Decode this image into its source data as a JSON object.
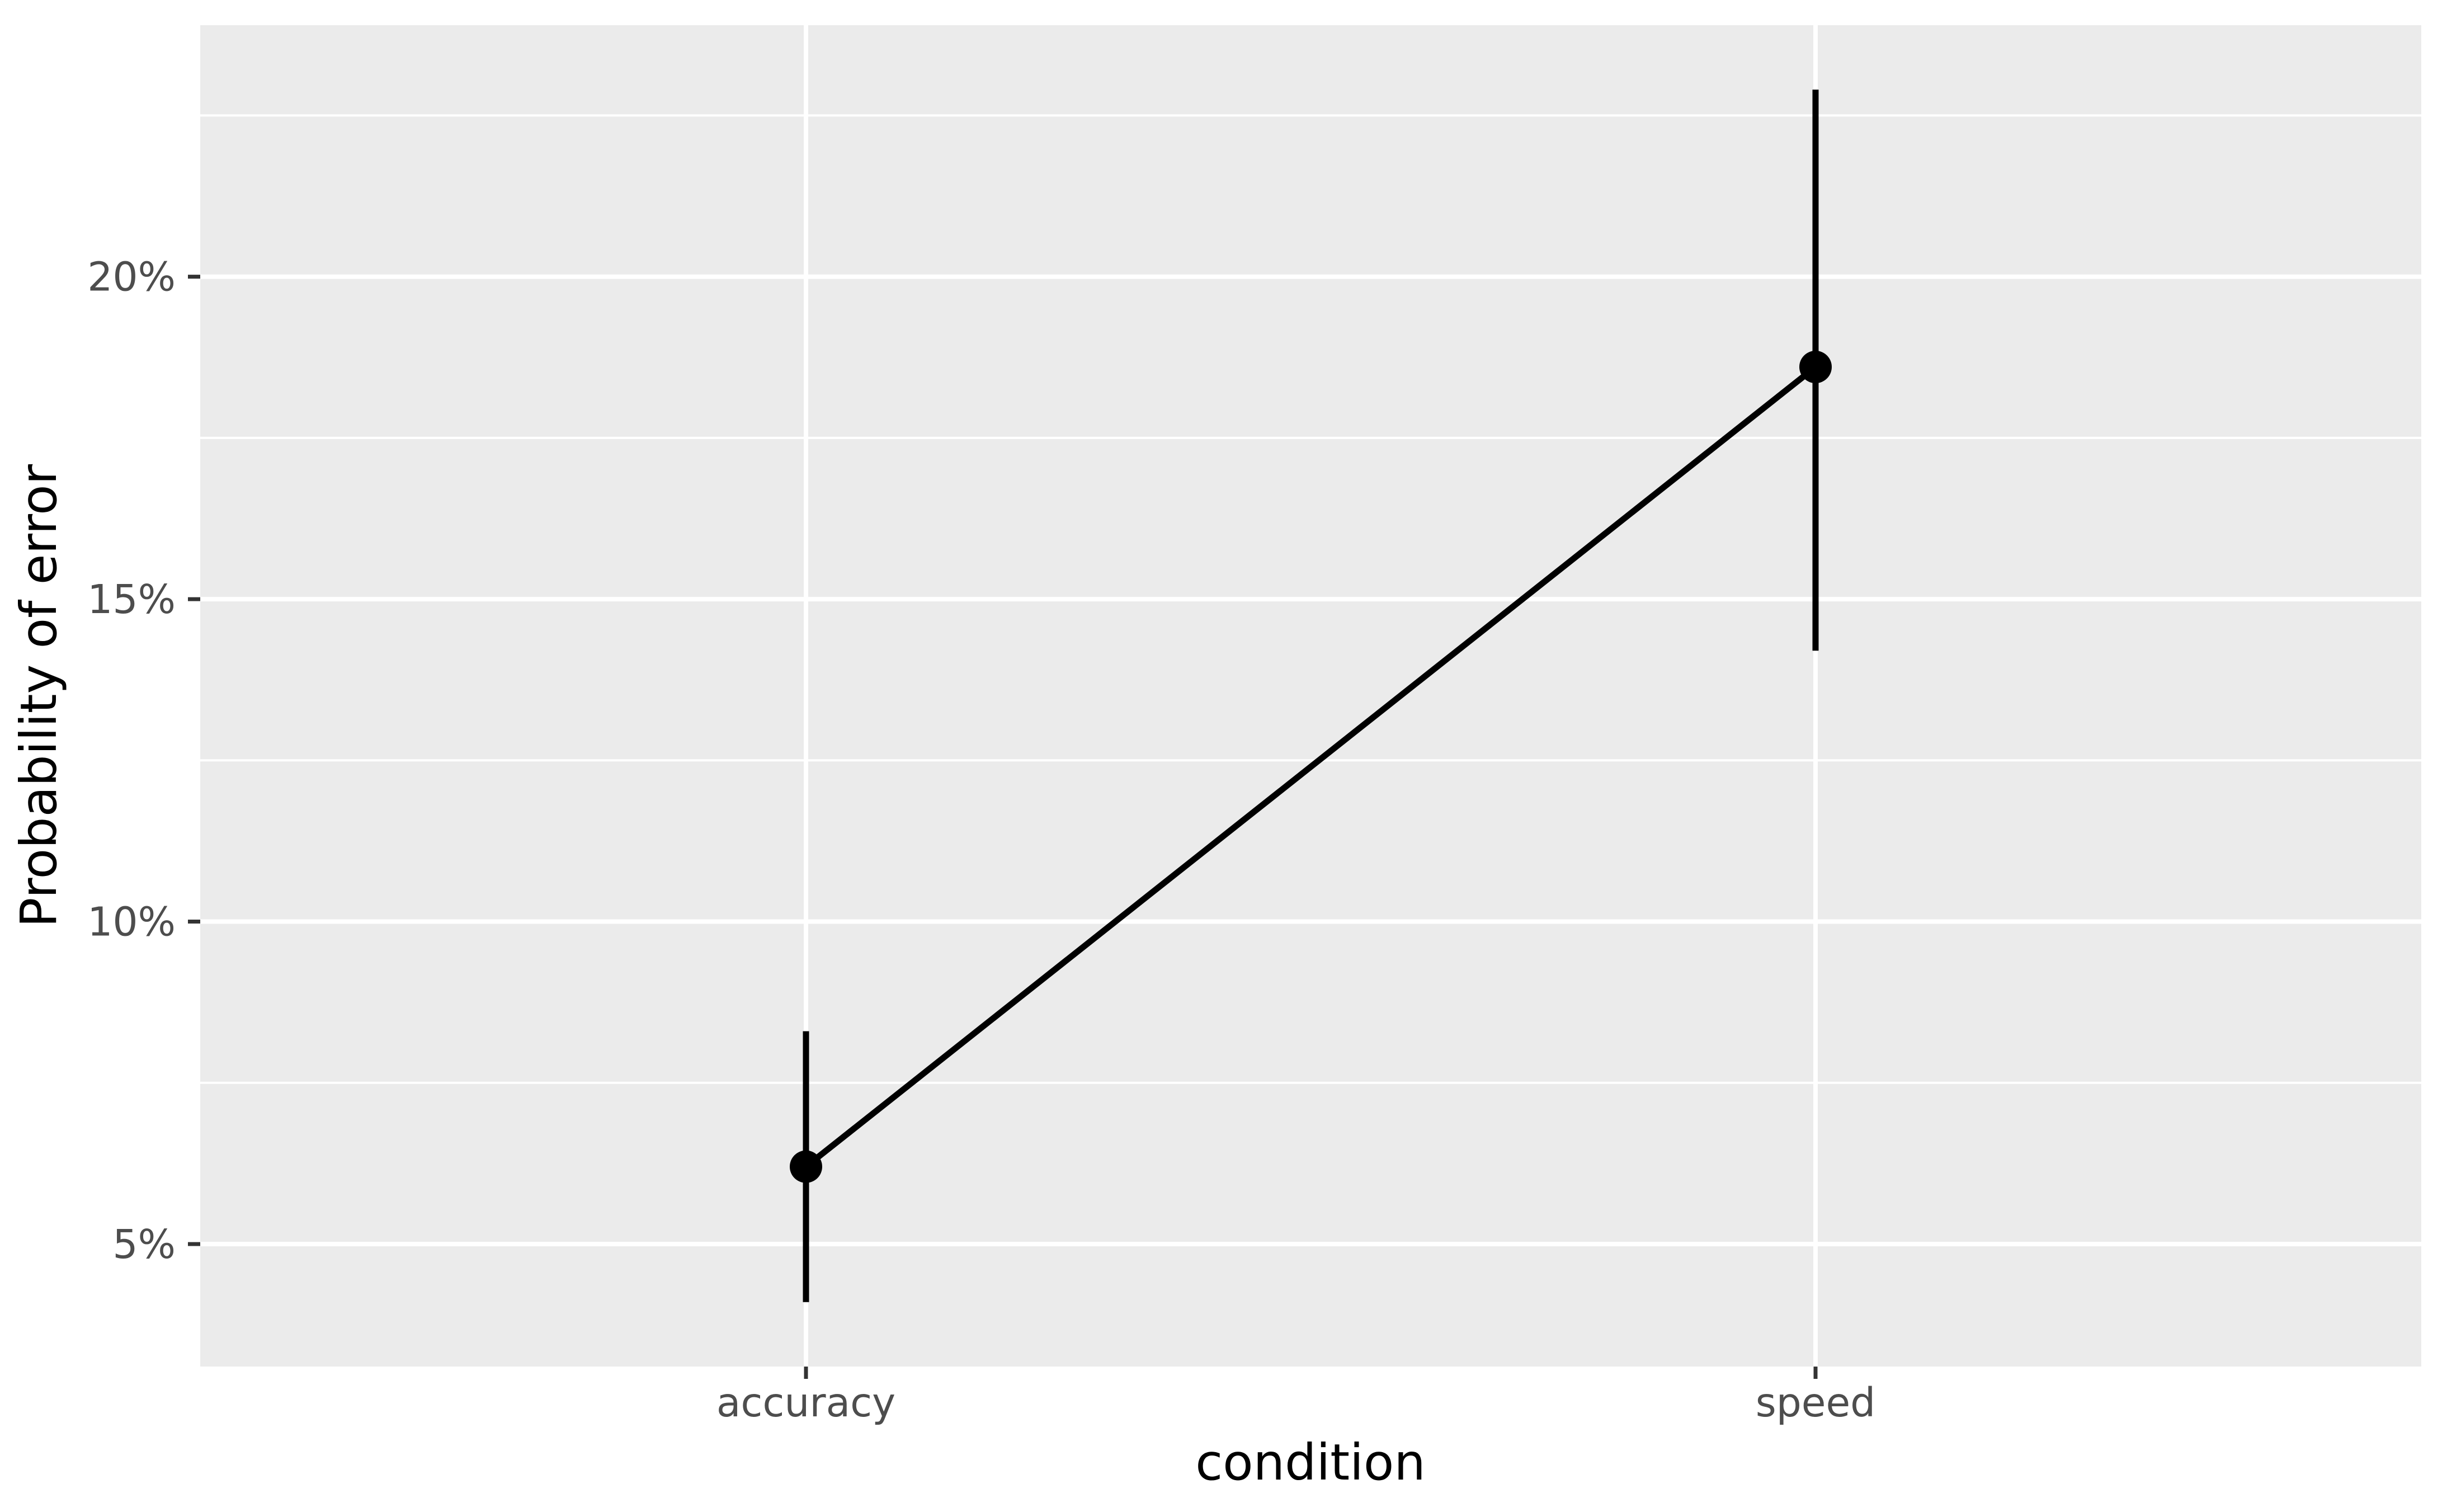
{
  "chart_data": {
    "type": "line+pointrange",
    "title": "",
    "xlabel": "condition",
    "ylabel": "Probability of error",
    "categories": [
      "accuracy",
      "speed"
    ],
    "x_positions": [
      1,
      2
    ],
    "series": [
      {
        "name": "probability of error",
        "points": [
          {
            "x": "accuracy",
            "y": 6.2,
            "ymin": 4.1,
            "ymax": 8.3
          },
          {
            "x": "speed",
            "y": 18.6,
            "ymin": 14.2,
            "ymax": 22.9
          }
        ]
      }
    ],
    "y_ticks": [
      {
        "value": 20,
        "label": "20%"
      },
      {
        "value": 15,
        "label": "15%"
      },
      {
        "value": 10,
        "label": "10%"
      },
      {
        "value": 5,
        "label": "5%"
      }
    ],
    "y_minor_gridlines": [
      22.5,
      17.5,
      12.5,
      7.5
    ],
    "ylim": [
      3.1,
      23.9
    ],
    "xlim": [
      0.4,
      2.6
    ],
    "grid": "white major and minor lines on grey panel, no vertical minors",
    "legend": "none",
    "style": {
      "outer_bg": "#FFFFFF",
      "panel_bg": "#EBEBEB",
      "grid_major": "#FFFFFF",
      "grid_minor": "#FFFFFF",
      "geom_color": "#000000",
      "tick_mark_color": "#333333",
      "tick_label_color": "#4D4D4D",
      "axis_title_color": "#000000"
    }
  }
}
